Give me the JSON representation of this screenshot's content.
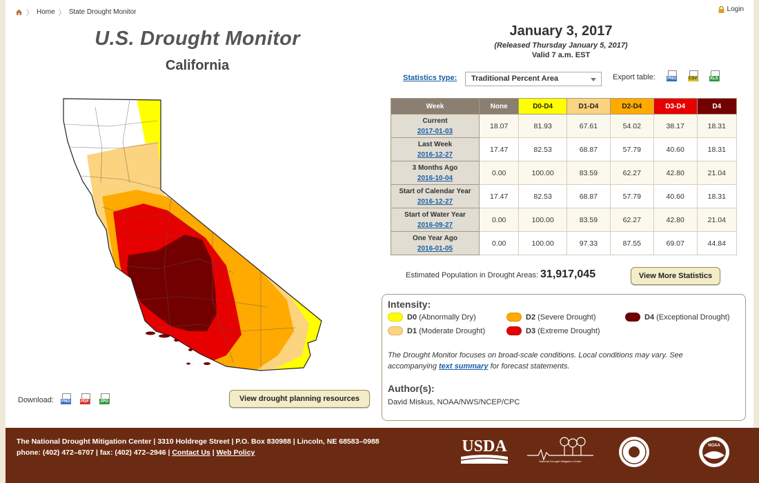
{
  "breadcrumb": {
    "home": "Home",
    "current": "State Drought Monitor"
  },
  "login": "Login",
  "header": {
    "title": "U.S. Drought Monitor",
    "state": "California"
  },
  "date": {
    "main": "January 3, 2017",
    "released": "(Released Thursday January 5, 2017)",
    "valid": "Valid 7 a.m. EST"
  },
  "stats_type": {
    "label": "Statistics type:",
    "value": "Traditional Percent Area"
  },
  "export": {
    "label": "Export table:",
    "icons": [
      "png-file-icon",
      "csv-file-icon",
      "xls-file-icon"
    ],
    "png": "PNG",
    "csv": "CSV",
    "xls": "XLS"
  },
  "table": {
    "headers": [
      "Week",
      "None",
      "D0-D4",
      "D1-D4",
      "D2-D4",
      "D3-D4",
      "D4"
    ],
    "header_colors": [
      "#8a7f70",
      "#8a7f70",
      "#ffff00",
      "#fcd37f",
      "#ffaa00",
      "#e60000",
      "#730000"
    ],
    "rows": [
      {
        "label": "Current",
        "date": "2017-01-03",
        "values": [
          "18.07",
          "81.93",
          "67.61",
          "54.02",
          "38.17",
          "18.31"
        ]
      },
      {
        "label": "Last Week",
        "date": "2016-12-27",
        "values": [
          "17.47",
          "82.53",
          "68.87",
          "57.79",
          "40.60",
          "18.31"
        ]
      },
      {
        "label": "3 Months Ago",
        "date": "2016-10-04",
        "values": [
          "0.00",
          "100.00",
          "83.59",
          "62.27",
          "42.80",
          "21.04"
        ]
      },
      {
        "label": "Start of Calendar Year",
        "date": "2016-12-27",
        "values": [
          "17.47",
          "82.53",
          "68.87",
          "57.79",
          "40.60",
          "18.31"
        ]
      },
      {
        "label": "Start of Water Year",
        "date": "2016-09-27",
        "values": [
          "0.00",
          "100.00",
          "83.59",
          "62.27",
          "42.80",
          "21.04"
        ]
      },
      {
        "label": "One Year Ago",
        "date": "2016-01-05",
        "values": [
          "0.00",
          "100.00",
          "97.33",
          "87.55",
          "69.07",
          "44.84"
        ]
      }
    ]
  },
  "population": {
    "label": "Estimated Population in Drought Areas:",
    "value": "31,917,045"
  },
  "buttons": {
    "more_stats": "View More Statistics",
    "planning": "View drought planning resources"
  },
  "legend": {
    "title": "Intensity:",
    "items": [
      {
        "code": "D0",
        "desc": "(Abnormally Dry)",
        "color": "#ffff00"
      },
      {
        "code": "D1",
        "desc": "(Moderate Drought)",
        "color": "#fcd37f"
      },
      {
        "code": "D2",
        "desc": "(Severe Drought)",
        "color": "#ffaa00"
      },
      {
        "code": "D3",
        "desc": "(Extreme Drought)",
        "color": "#e60000"
      },
      {
        "code": "D4",
        "desc": "(Exceptional Drought)",
        "color": "#730000"
      }
    ],
    "note_before": "The Drought Monitor focuses on broad-scale conditions. Local conditions may vary. See accompanying",
    "note_link": "text summary",
    "note_after": "for forecast statements.",
    "authors_title": "Author(s):",
    "author": "David Miskus, NOAA/NWS/NCEP/CPC"
  },
  "download": {
    "label": "Download:",
    "icons": [
      "png-file-icon",
      "pdf-file-icon",
      "jpg-file-icon"
    ],
    "png": "PNG",
    "pdf": "PDF",
    "jpg": "JPG"
  },
  "footer": {
    "org": "The National Drought Mitigation Center",
    "address": "3310 Holdrege Street | P.O. Box 830988 | Lincoln, NE 68583–0988",
    "phone": "phone: (402) 472–6707 | fax: (402) 472–2946 |",
    "contact": "Contact Us",
    "policy": "Web Policy",
    "usda": "USDA",
    "ndmc_caption": "National Drought Mitigation Center",
    "noaa": "NOAA"
  }
}
